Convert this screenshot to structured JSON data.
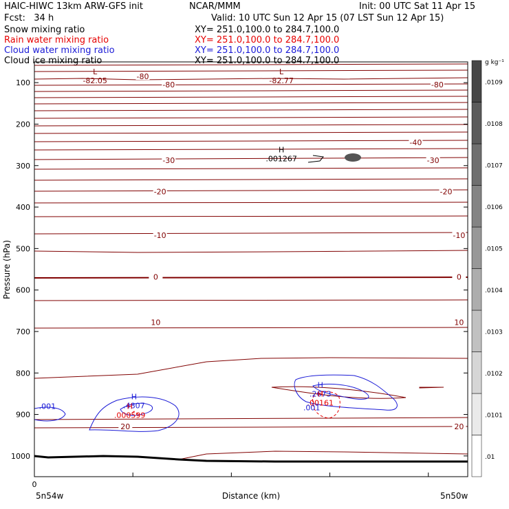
{
  "header": {
    "title_left": "HAIC-HIWC 13km ARW-GFS init",
    "title_center": "NCAR/MMM",
    "init": "Init: 00 UTC Sat 11 Apr 15",
    "fcst": "Fcst:   34 h",
    "valid": "Valid: 10 UTC Sun 12 Apr 15 (07 LST Sun 12 Apr 15)",
    "fields": [
      {
        "name": "Snow mixing ratio",
        "xy": "XY= 251.0,100.0 to 284.7,100.0",
        "color": "#000000"
      },
      {
        "name": "Rain water mixing ratio",
        "xy": "XY= 251.0,100.0 to 284.7,100.0",
        "color": "#e60000"
      },
      {
        "name": "Cloud water mixing ratio",
        "xy": "XY= 251.0,100.0 to 284.7,100.0",
        "color": "#1a1ad6"
      },
      {
        "name": "Cloud ice mixing ratio",
        "xy": "XY= 251.0,100.0 to 284.7,100.0",
        "color": "#000000"
      }
    ]
  },
  "chart_data": {
    "type": "contour",
    "xlabel": "Distance (km)",
    "ylabel": "Pressure (hPa)",
    "x_tick_first": "0",
    "x_endpoints": [
      "5n54w",
      "5n50w"
    ],
    "y_ticks": [
      100,
      200,
      300,
      400,
      500,
      600,
      700,
      800,
      900,
      1000
    ],
    "ylim": [
      50,
      1050
    ],
    "colorbar": {
      "unit": "g kg⁻¹",
      "labels": [
        ".01",
        ".0101",
        ".0102",
        ".0103",
        ".0104",
        ".0105",
        ".0106",
        ".0107",
        ".0108",
        ".0109"
      ]
    },
    "temperature_labels": [
      {
        "text": "-80",
        "x": 0.25,
        "p": 85
      },
      {
        "text": "-80",
        "x": 0.31,
        "p": 105
      },
      {
        "text": "-80",
        "x": 0.93,
        "p": 105
      },
      {
        "text": "-40",
        "x": 0.88,
        "p": 244
      },
      {
        "text": "-30",
        "x": 0.31,
        "p": 287
      },
      {
        "text": "-30",
        "x": 0.92,
        "p": 287
      },
      {
        "text": "-20",
        "x": 0.29,
        "p": 363
      },
      {
        "text": "-20",
        "x": 0.95,
        "p": 363
      },
      {
        "text": "-10",
        "x": 0.29,
        "p": 468
      },
      {
        "text": "-10",
        "x": 0.98,
        "p": 468
      },
      {
        "text": "0",
        "x": 0.28,
        "p": 568
      },
      {
        "text": "0",
        "x": 0.98,
        "p": 568
      },
      {
        "text": "10",
        "x": 0.28,
        "p": 678
      },
      {
        "text": "10",
        "x": 0.98,
        "p": 678
      },
      {
        "text": "20",
        "x": 0.21,
        "p": 929
      },
      {
        "text": "20",
        "x": 0.98,
        "p": 929
      }
    ],
    "extrema": [
      {
        "type": "L",
        "value": "-82.05",
        "x": 0.14,
        "p": 90,
        "color": "#800000"
      },
      {
        "type": "L",
        "value": "-82.77",
        "x": 0.57,
        "p": 90,
        "color": "#800000"
      },
      {
        "type": "H",
        "value": ".001267",
        "x": 0.57,
        "p": 278,
        "color": "#000000"
      },
      {
        "type": "H",
        "value": ".4807",
        "x": 0.23,
        "p": 873,
        "color": "#1a1ad6"
      },
      {
        "type": "H",
        "value": ".000599",
        "x": 0.22,
        "p": 897,
        "color": "#e60000"
      },
      {
        "type": "H",
        "value": ".2673",
        "x": 0.66,
        "p": 845,
        "color": "#1a1ad6"
      },
      {
        "type": "H",
        "value": ".00161",
        "x": 0.66,
        "p": 867,
        "color": "#e60000"
      }
    ],
    "cloud_water_labels": [
      {
        "text": ".001",
        "x": 0.03,
        "p": 880
      },
      {
        "text": ".001",
        "x": 0.64,
        "p": 883
      }
    ]
  }
}
